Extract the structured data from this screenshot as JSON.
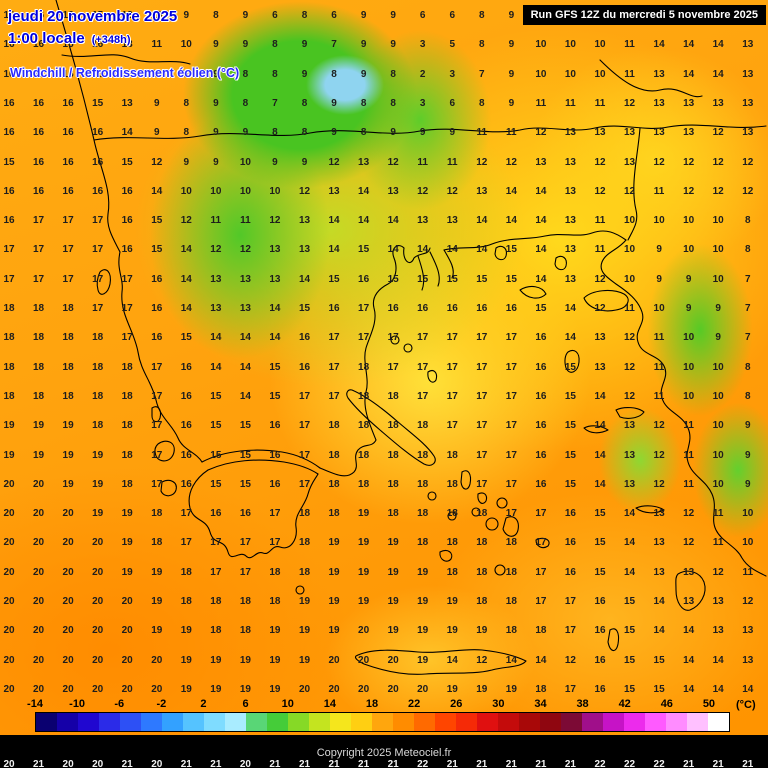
{
  "header": {
    "date_line": "jeudi 20 novembre 2025",
    "time_line": "1:00 locale",
    "forecast_offset": "(+348h)",
    "subtitle": "Windchill / Refroidissement éolien (°C)",
    "run_info": "Run GFS 12Z du mercredi 5 novembre 2025"
  },
  "map": {
    "value_rows": [
      "16 16 16 15 12 10 9 8 9 6 8 6 9 9 6 6 8 9 10 10 11 11 14 14 13 14",
      "16 16 16 16 13 11 10 9 9 8 9 7 9 9 3 5 8 9 10 10 10 11 14 14 14 13",
      "16 16 16 16 14 11 10 9 8 8 9 8 9 8 2 3 7 9 10 10 10 11 13 14 14 13",
      "16 16 16 15 13 9 8 9 8 7 8 9 8 8 3 6 8 9 11 11 11 12 13 13 13 13",
      "16 16 16 16 14 9 8 9 9 8 8 9 8 9 9 9 11 11 12 13 13 13 13 13 12 13",
      "15 16 16 16 15 12 9 9 10 9 9 12 13 12 11 11 12 12 13 13 12 13 12 12 12 12",
      "16 16 16 16 16 14 10 10 10 10 12 13 14 13 12 12 13 14 14 13 12 12 11 12 12 12",
      "16 17 17 17 16 15 12 11 11 12 13 14 14 14 13 13 14 14 14 13 11 10 10 10 10 8",
      "17 17 17 17 16 15 14 12 12 13 13 14 15 14 14 14 14 15 14 13 11 10 9 10 10 8",
      "17 17 17 17 17 16 14 13 13 13 14 15 16 15 15 15 15 15 14 13 12 10 9 9 10 7",
      "18 18 18 17 17 16 14 13 13 14 15 16 17 16 16 16 16 16 15 14 12 11 10 9 9 7",
      "18 18 18 18 17 16 15 14 14 14 16 17 17 17 17 17 17 17 16 14 13 12 11 10 9 7",
      "18 18 18 18 18 17 16 14 14 15 16 17 18 17 17 17 17 17 16 15 13 12 11 10 10 8",
      "18 18 18 18 18 17 16 15 14 15 17 17 18 18 17 17 17 17 16 15 14 12 11 10 10 8",
      "19 19 19 18 18 17 16 15 15 16 17 18 18 18 18 17 17 17 16 15 14 13 12 11 10 9",
      "19 19 19 19 18 17 16 15 15 16 17 18 18 18 18 18 17 17 16 15 14 13 12 11 10 9",
      "20 20 19 19 18 17 16 15 15 16 17 18 18 18 18 18 17 17 16 15 14 13 12 11 10 9",
      "20 20 20 19 19 18 17 16 16 17 18 18 19 18 18 18 18 17 17 16 15 14 13 12 11 10",
      "20 20 20 20 19 18 17 17 17 17 18 19 19 19 18 18 18 18 17 16 15 14 13 12 11 10",
      "20 20 20 20 19 19 18 17 17 18 18 19 19 19 19 18 18 18 17 16 15 14 13 13 12 11",
      "20 20 20 20 20 19 18 18 18 18 19 19 19 19 19 19 18 18 17 17 16 15 14 13 13 12",
      "20 20 20 20 20 19 19 18 18 19 19 19 20 19 19 19 19 18 18 17 16 15 14 14 13 13",
      "20 20 20 20 20 20 19 19 19 19 19 20 20 20 19 14 12 14 14 12 16 15 15 14 14 13",
      "20 20 20 20 20 20 19 19 19 19 20 20 20 20 20 19 19 19 18 17 16 15 15 14 14 14"
    ],
    "bottom_partial_row": "20 21 20 20 21 20 21 21 20 21 21 21 21 21 22 21 21 21 21 21 22 22 22 21 21 21"
  },
  "colorbar": {
    "unit_label": "(°C)",
    "min": -14,
    "max": 52,
    "top_labels": [
      -14,
      -10,
      -6,
      -2,
      2,
      6,
      10,
      14,
      18,
      22,
      26,
      30,
      34,
      38,
      42,
      46,
      50
    ],
    "bottom_labels": [
      -12,
      -8,
      -4,
      0,
      4,
      8,
      12,
      16,
      20,
      24,
      28,
      32,
      36,
      40,
      44,
      48,
      52
    ],
    "segment_colors": [
      "#0a0070",
      "#1500a8",
      "#2007d0",
      "#2b2be8",
      "#2d50f5",
      "#2e79ff",
      "#33a1ff",
      "#55c3ff",
      "#7fdcff",
      "#a9ecff",
      "#59d676",
      "#45cc39",
      "#86d926",
      "#c4e41f",
      "#f5e61c",
      "#ffcf12",
      "#ffa60d",
      "#ff8c00",
      "#ff6a00",
      "#ff4500",
      "#f52a07",
      "#e01010",
      "#c40b0b",
      "#a80808",
      "#8f0610",
      "#7c0a35",
      "#a00f8a",
      "#c613c6",
      "#ec2bec",
      "#ff5aff",
      "#ff8cff",
      "#ffc0ff",
      "#ffffff"
    ]
  },
  "footer": {
    "copyright": "Copyright 2025 Meteociel.fr"
  },
  "colors": {
    "header_blue": "#0000dd",
    "subtitle_blue": "#2a2aff",
    "base_orange": "#ff9d1e",
    "yellow": "#ffd91c",
    "green": "#49c421"
  }
}
